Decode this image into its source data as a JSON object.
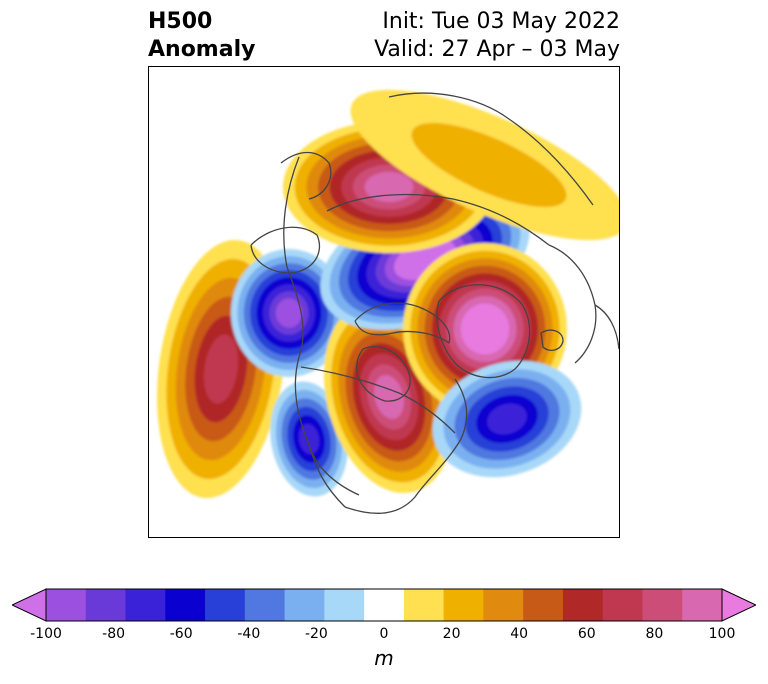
{
  "title": {
    "field": "H500",
    "subfield": "Anomaly",
    "init": "Init: Tue 03 May 2022",
    "valid": "Valid: 27 Apr – 03 May"
  },
  "colorbar": {
    "unit": "m",
    "min": -100,
    "max": 100,
    "extend": "both",
    "tick_labels": [
      "-100",
      "-80",
      "-60",
      "-40",
      "-20",
      "0",
      "20",
      "40",
      "60",
      "80",
      "100"
    ],
    "colors": [
      "#d070e8",
      "#9c50e0",
      "#6a3ad8",
      "#3a22d8",
      "#0a00d0",
      "#2840d8",
      "#5078e0",
      "#7ab0f0",
      "#a8d8f8",
      "#ffffff",
      "#ffe050",
      "#f0b000",
      "#e08a10",
      "#c85a18",
      "#b02828",
      "#c03850",
      "#cc4e78",
      "#d868b0",
      "#e87ae0"
    ]
  },
  "map": {
    "projection": "north-polar-stereographic",
    "coastline_color": "#444444",
    "anomaly_features": [
      {
        "name": "ridge-northeast-pacific",
        "sign": "positive",
        "peak_m": 60
      },
      {
        "name": "trough-western-canada",
        "sign": "negative",
        "peak_m": -80
      },
      {
        "name": "trough-california",
        "sign": "negative",
        "peak_m": -60
      },
      {
        "name": "ridge-central-canada",
        "sign": "positive",
        "peak_m": 80
      },
      {
        "name": "trough-arctic-ocean",
        "sign": "negative",
        "peak_m": -100
      },
      {
        "name": "ridge-siberia",
        "sign": "positive",
        "peak_m": 80
      },
      {
        "name": "ridge-greenland",
        "sign": "positive",
        "peak_m": 100
      },
      {
        "name": "trough-north-atlantic",
        "sign": "negative",
        "peak_m": -60
      },
      {
        "name": "ridge-eurasia",
        "sign": "positive",
        "peak_m": 20
      }
    ]
  }
}
